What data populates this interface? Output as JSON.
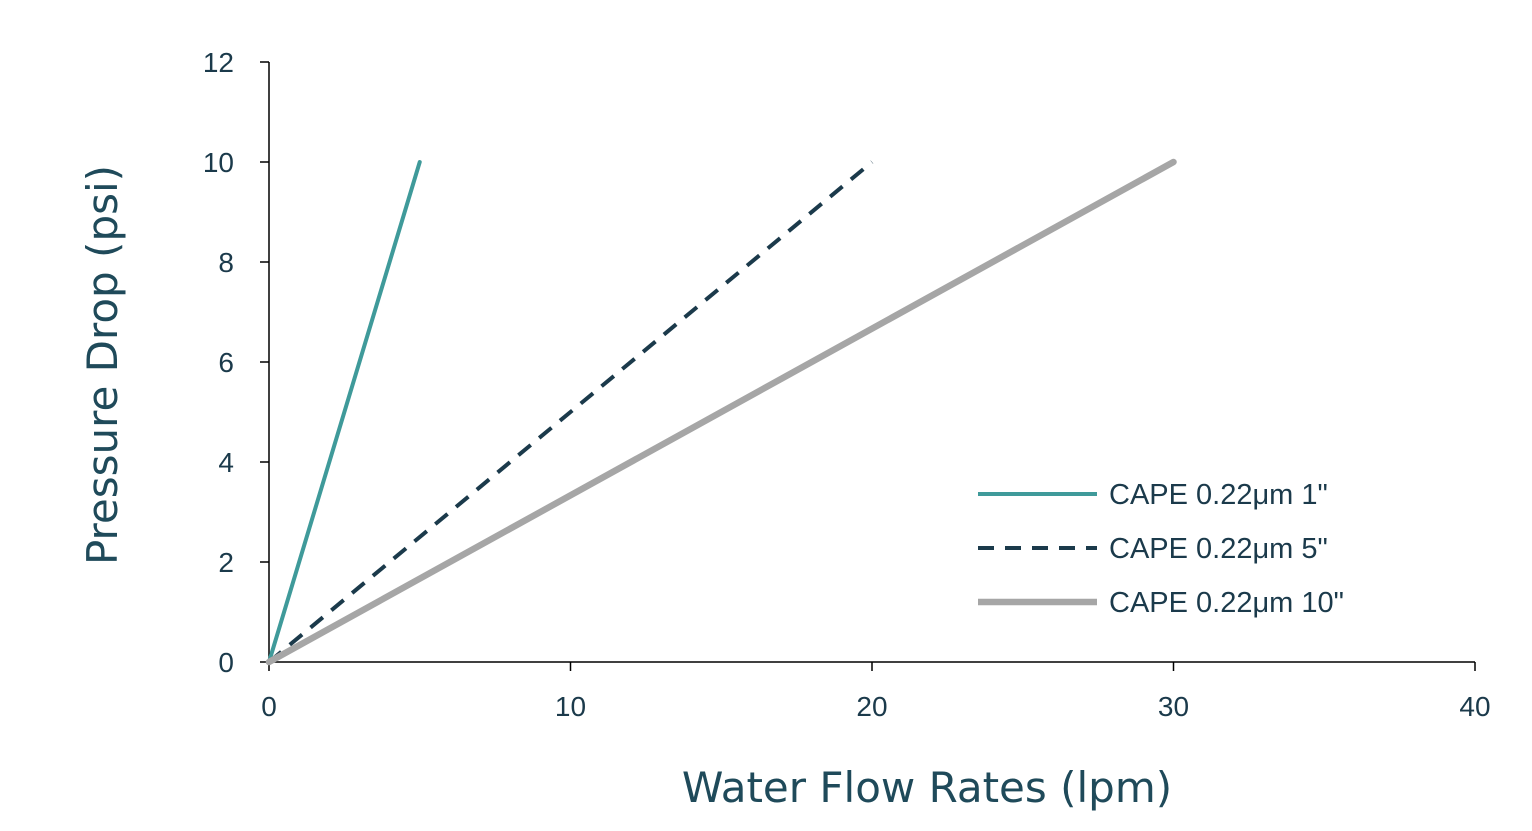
{
  "chart_data": {
    "type": "line",
    "xlabel": "Water Flow Rates (lpm)",
    "ylabel": "Pressure Drop (psi)",
    "xlim": [
      0,
      40
    ],
    "ylim": [
      0,
      12
    ],
    "x_ticks": [
      "0",
      "10",
      "20",
      "30",
      "40"
    ],
    "y_ticks": [
      "0",
      "2",
      "4",
      "6",
      "8",
      "10",
      "12"
    ],
    "grid": false,
    "legend_position": "bottom-right",
    "series": [
      {
        "name": "CAPE 0.22μm 1\"",
        "x": [
          0,
          5
        ],
        "y": [
          0,
          10
        ],
        "color": "#3f9a9a",
        "style": "solid"
      },
      {
        "name": "CAPE 0.22μm 5\"",
        "x": [
          0,
          20
        ],
        "y": [
          0,
          10
        ],
        "color": "#1b3a4b",
        "style": "dashed"
      },
      {
        "name": "CAPE 0.22μm 10\"",
        "x": [
          0,
          30
        ],
        "y": [
          0,
          10
        ],
        "color": "#a6a6a6",
        "style": "solid-thick"
      }
    ]
  }
}
